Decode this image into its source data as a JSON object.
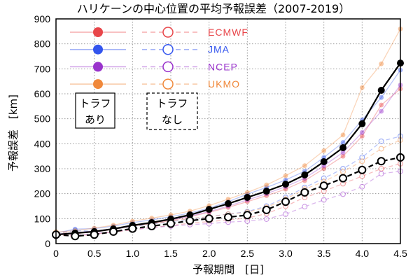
{
  "chart_data": {
    "type": "line",
    "title": "ハリケーンの中心位置の平均予報誤差（2007-2019）",
    "xlabel": "予報期間　[日]",
    "ylabel": "予報誤差　[km]",
    "xlim": [
      0,
      4.5
    ],
    "ylim": [
      0,
      900
    ],
    "xticks": [
      0,
      0.5,
      1.0,
      1.5,
      2.0,
      2.5,
      3.0,
      3.5,
      4.0,
      4.5
    ],
    "xtick_labels": [
      "0",
      "0.5",
      "1.0",
      "1.5",
      "2.0",
      "2.5",
      "3.0",
      "3.5",
      "4.0",
      "4.5"
    ],
    "yticks": [
      0,
      100,
      200,
      300,
      400,
      500,
      600,
      700,
      800,
      900
    ],
    "grid": true,
    "legend_position": "top-left",
    "x": [
      0,
      0.25,
      0.5,
      0.75,
      1.0,
      1.25,
      1.5,
      1.75,
      2.0,
      2.25,
      2.5,
      2.75,
      3.0,
      3.25,
      3.5,
      3.75,
      4.0,
      4.25,
      4.5
    ],
    "series": [
      {
        "name": "ECMWF",
        "color": "#e8464a",
        "filled_values": [
          34,
          40,
          47,
          57,
          70,
          80,
          92,
          108,
          125,
          145,
          168,
          192,
          218,
          252,
          300,
          350,
          430,
          555,
          620
        ],
        "open_values": [
          34,
          30,
          38,
          46,
          55,
          65,
          72,
          82,
          88,
          95,
          102,
          120,
          150,
          185,
          210,
          240,
          270,
          300,
          320
        ]
      },
      {
        "name": "JMA",
        "color": "#3355ee",
        "filled_values": [
          42,
          58,
          60,
          70,
          84,
          95,
          108,
          122,
          142,
          168,
          198,
          225,
          255,
          290,
          345,
          405,
          495,
          585,
          695
        ],
        "open_values": [
          42,
          52,
          50,
          58,
          68,
          78,
          88,
          98,
          108,
          118,
          128,
          150,
          185,
          225,
          262,
          300,
          345,
          410,
          430
        ]
      },
      {
        "name": "NCEP",
        "color": "#9933cc",
        "filled_values": [
          38,
          44,
          50,
          60,
          74,
          84,
          95,
          110,
          128,
          150,
          175,
          200,
          228,
          262,
          312,
          365,
          445,
          530,
          635
        ],
        "open_values": [
          38,
          34,
          40,
          48,
          56,
          64,
          70,
          76,
          80,
          86,
          90,
          98,
          118,
          148,
          175,
          198,
          228,
          280,
          290
        ]
      },
      {
        "name": "UKMO",
        "color": "#f0883a",
        "filled_values": [
          46,
          52,
          62,
          74,
          90,
          102,
          115,
          130,
          152,
          178,
          205,
          235,
          272,
          312,
          372,
          435,
          625,
          720,
          860
        ],
        "open_values": [
          46,
          40,
          48,
          58,
          70,
          80,
          90,
          100,
          108,
          118,
          126,
          145,
          178,
          218,
          248,
          288,
          330,
          380,
          415
        ]
      },
      {
        "color": "#000000",
        "bold": true,
        "filled_values": [
          36,
          42,
          48,
          59,
          73,
          84,
          98,
          115,
          137,
          160,
          185,
          210,
          238,
          275,
          328,
          384,
          480,
          614,
          723
        ],
        "open_values": [
          36,
          30,
          36,
          48,
          60,
          70,
          80,
          92,
          100,
          106,
          114,
          135,
          168,
          205,
          232,
          262,
          295,
          330,
          345
        ]
      }
    ],
    "trough_boxes": [
      {
        "lines": [
          "トラフ",
          "あり"
        ],
        "dashed": false
      },
      {
        "lines": [
          "トラフ",
          "なし"
        ],
        "dashed": true
      }
    ]
  }
}
